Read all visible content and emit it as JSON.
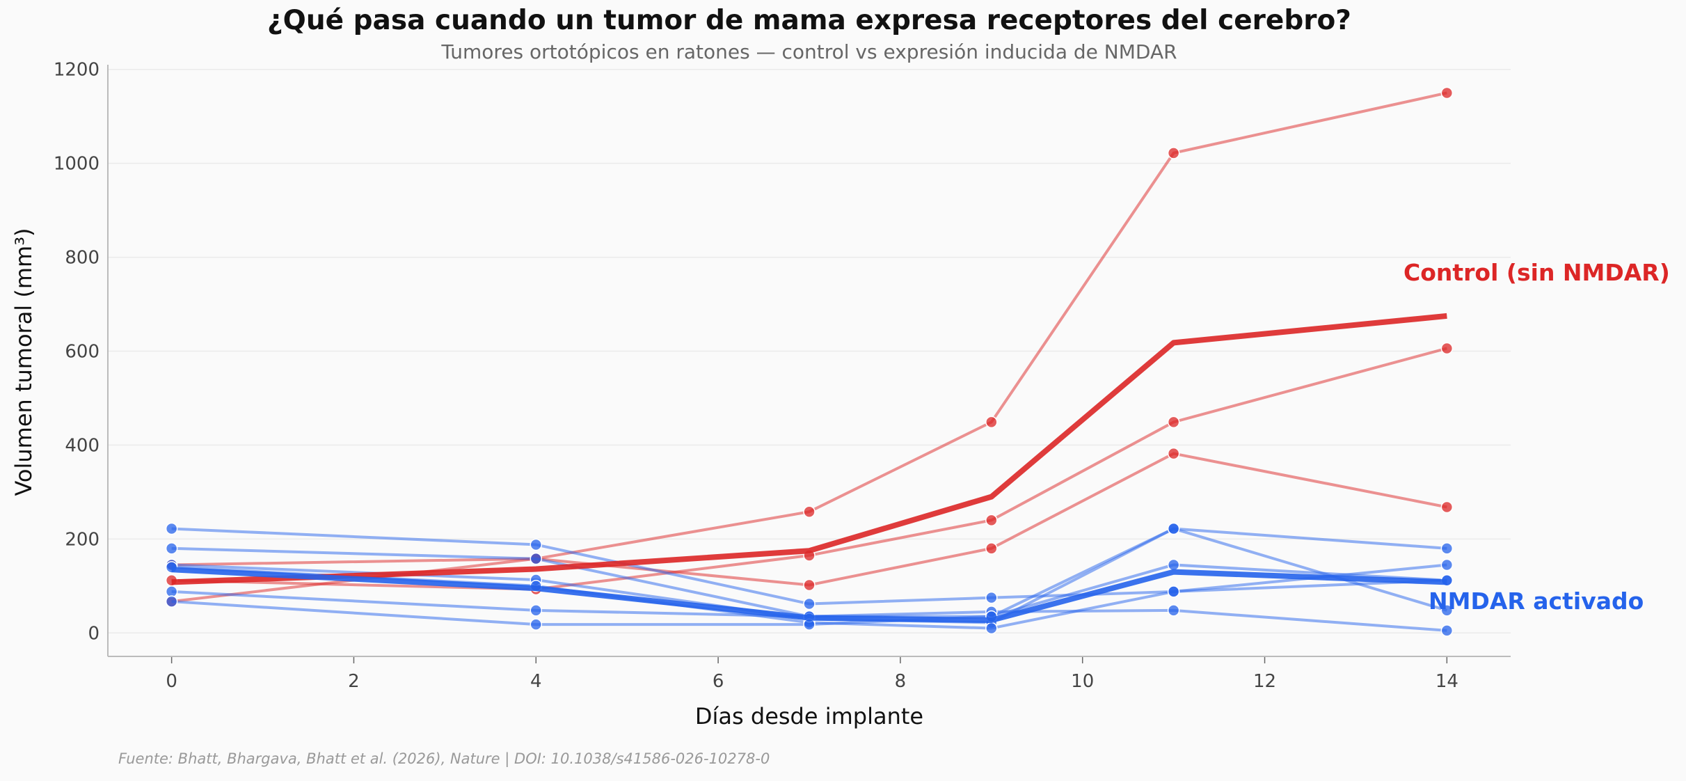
{
  "chart_data": {
    "type": "line",
    "title": "¿Qué pasa cuando un tumor de mama expresa receptores del cerebro?",
    "subtitle": "Tumores ortotópicos en ratones — control vs expresión inducida de NMDAR",
    "xlabel": "Días desde implante",
    "ylabel": "Volumen tumoral (mm³)",
    "xlim": [
      -0.7,
      14.7
    ],
    "ylim": [
      -50,
      1210
    ],
    "xticks": [
      0,
      2,
      4,
      6,
      8,
      10,
      12,
      14
    ],
    "yticks": [
      0,
      200,
      400,
      600,
      800,
      1000,
      1200
    ],
    "grid": "horizontal",
    "x": [
      0,
      4,
      7,
      9,
      11,
      14
    ],
    "groups": [
      {
        "name": "Control (sin NMDAR)",
        "color": "#dc2626",
        "individuals": [
          [
            67,
            158,
            258,
            449,
            1022,
            1150
          ],
          [
            145,
            158,
            102,
            180,
            382,
            268
          ],
          [
            112,
            93,
            165,
            240,
            449,
            606
          ]
        ],
        "mean": [
          108,
          136,
          175,
          290,
          618,
          675
        ]
      },
      {
        "name": "NMDAR activado",
        "color": "#2563eb",
        "individuals": [
          [
            222,
            188,
            62,
            75,
            88,
            145
          ],
          [
            180,
            158,
            35,
            35,
            222,
            180
          ],
          [
            145,
            113,
            30,
            22,
            222,
            48
          ],
          [
            140,
            100,
            22,
            10,
            88,
            112
          ],
          [
            88,
            48,
            35,
            45,
            48,
            5
          ],
          [
            67,
            18,
            18,
            35,
            145,
            112
          ]
        ],
        "mean": [
          135,
          95,
          32,
          27,
          130,
          108
        ]
      }
    ],
    "source": "Fuente: Bhatt, Bhargava, Bhatt et al. (2026), Nature | DOI: 10.1038/s41586-026-10278-0"
  }
}
